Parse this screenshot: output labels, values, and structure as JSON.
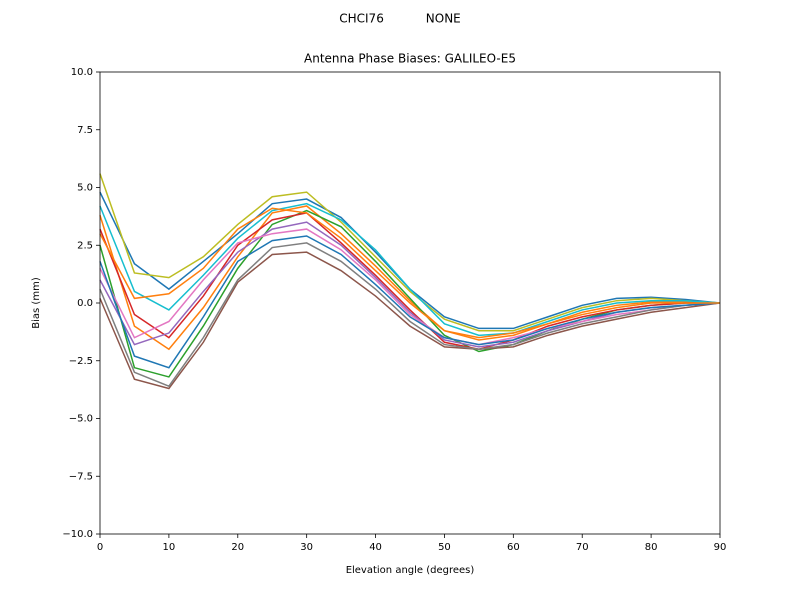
{
  "chart_data": {
    "type": "line",
    "suptitle": "CHCI76           NONE",
    "title": "Antenna Phase Biases: GALILEO-E5",
    "xlabel": "Elevation angle (degrees)",
    "ylabel": "Bias (mm)",
    "x": [
      0,
      5,
      10,
      15,
      20,
      25,
      30,
      35,
      40,
      45,
      50,
      55,
      60,
      65,
      70,
      75,
      80,
      85,
      90
    ],
    "xlim": [
      0,
      90
    ],
    "xticks": [
      0,
      10,
      20,
      30,
      40,
      50,
      60,
      70,
      80,
      90
    ],
    "ylim": [
      -10,
      10
    ],
    "yticks": [
      {
        "value": -10,
        "label": "−10.0"
      },
      {
        "value": -7.5,
        "label": "−7.5"
      },
      {
        "value": -5,
        "label": "−5.0"
      },
      {
        "value": -2.5,
        "label": "−2.5"
      },
      {
        "value": 0,
        "label": "0.0"
      },
      2.5,
      {
        "value": 5,
        "label": "5.0"
      },
      7.5,
      {
        "value": 10,
        "label": "10.0"
      }
    ],
    "series": [
      {
        "color": "#1f77b4",
        "values": [
          4.8,
          1.7,
          0.6,
          1.8,
          3.0,
          4.3,
          4.5,
          3.7,
          2.2,
          0.6,
          -0.6,
          -1.1,
          -1.1,
          -0.6,
          -0.1,
          0.2,
          0.25,
          0.15,
          0
        ]
      },
      {
        "color": "#ff7f0e",
        "values": [
          3.8,
          -1.0,
          -2.0,
          -0.2,
          2.0,
          3.9,
          4.2,
          3.0,
          1.6,
          0.1,
          -1.2,
          -1.6,
          -1.4,
          -0.9,
          -0.4,
          -0.1,
          0.05,
          0.05,
          0
        ]
      },
      {
        "color": "#2ca02c",
        "values": [
          2.5,
          -2.8,
          -3.2,
          -1.0,
          1.5,
          3.4,
          4.0,
          3.3,
          1.8,
          0.2,
          -1.4,
          -2.1,
          -1.8,
          -1.2,
          -0.7,
          -0.3,
          -0.1,
          0,
          0
        ]
      },
      {
        "color": "#d62728",
        "values": [
          3.2,
          -0.5,
          -1.5,
          0.3,
          2.5,
          3.6,
          3.9,
          2.6,
          1.2,
          -0.3,
          -1.7,
          -2.0,
          -1.6,
          -1.0,
          -0.6,
          -0.3,
          -0.1,
          0,
          0
        ]
      },
      {
        "color": "#9467bd",
        "values": [
          1.0,
          -1.8,
          -1.3,
          0.5,
          2.2,
          3.2,
          3.5,
          2.5,
          1.1,
          -0.4,
          -1.6,
          -1.9,
          -1.7,
          -1.2,
          -0.8,
          -0.4,
          -0.2,
          -0.1,
          0
        ]
      },
      {
        "color": "#8c564b",
        "values": [
          0.2,
          -3.3,
          -3.7,
          -1.7,
          0.9,
          2.1,
          2.2,
          1.4,
          0.3,
          -1.0,
          -1.9,
          -2.0,
          -1.9,
          -1.4,
          -1.0,
          -0.7,
          -0.4,
          -0.2,
          0
        ]
      },
      {
        "color": "#e377c2",
        "values": [
          1.5,
          -1.5,
          -0.8,
          1.0,
          2.6,
          3.0,
          3.2,
          2.3,
          1.0,
          -0.5,
          -1.5,
          -1.8,
          -1.5,
          -1.1,
          -0.8,
          -0.5,
          -0.3,
          -0.1,
          0
        ]
      },
      {
        "color": "#7f7f7f",
        "values": [
          0.6,
          -3.0,
          -3.6,
          -1.5,
          1.0,
          2.4,
          2.6,
          1.8,
          0.6,
          -0.8,
          -1.8,
          -2.0,
          -1.8,
          -1.3,
          -0.9,
          -0.6,
          -0.3,
          -0.1,
          0
        ]
      },
      {
        "color": "#bcbd22",
        "values": [
          5.6,
          1.3,
          1.1,
          2.0,
          3.4,
          4.6,
          4.8,
          3.5,
          2.0,
          0.5,
          -0.7,
          -1.2,
          -1.2,
          -0.7,
          -0.2,
          0.1,
          0.2,
          0.1,
          0
        ]
      },
      {
        "color": "#17becf",
        "values": [
          4.2,
          0.5,
          -0.3,
          1.2,
          2.8,
          4.0,
          4.3,
          3.6,
          2.3,
          0.6,
          -0.9,
          -1.4,
          -1.3,
          -0.8,
          -0.3,
          0,
          0.1,
          0.1,
          0
        ]
      },
      {
        "color": "#1f77b4",
        "values": [
          1.8,
          -2.3,
          -2.8,
          -0.6,
          1.8,
          2.7,
          2.9,
          2.1,
          0.8,
          -0.6,
          -1.5,
          -1.8,
          -1.6,
          -1.1,
          -0.7,
          -0.4,
          -0.2,
          -0.1,
          0
        ]
      },
      {
        "color": "#ff7f0e",
        "values": [
          3.0,
          0.2,
          0.4,
          1.5,
          3.2,
          4.1,
          3.9,
          2.8,
          1.4,
          0,
          -1.2,
          -1.5,
          -1.3,
          -0.9,
          -0.5,
          -0.2,
          0,
          0,
          0
        ]
      }
    ]
  }
}
